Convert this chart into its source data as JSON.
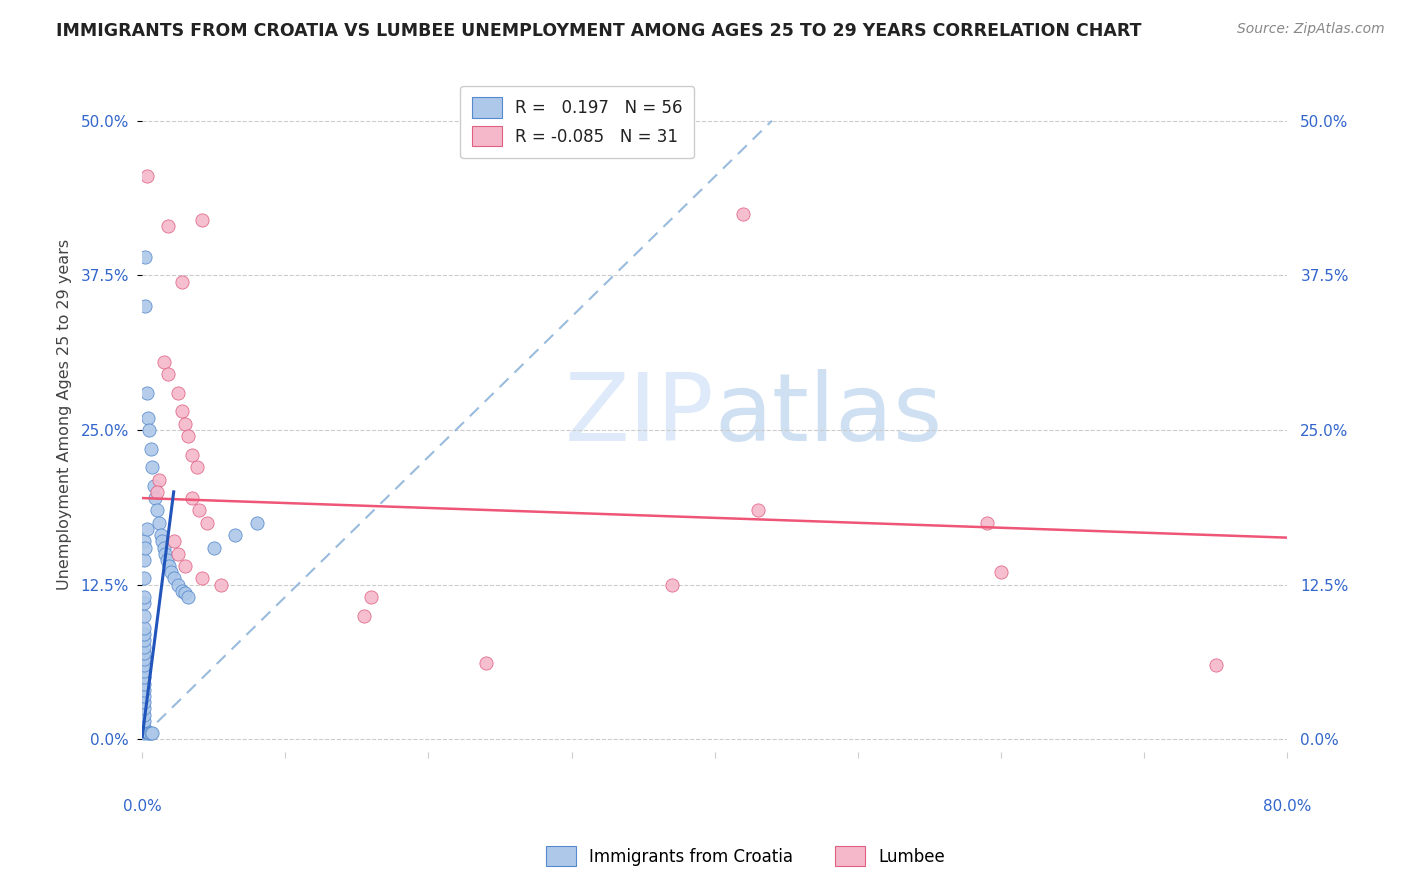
{
  "title": "IMMIGRANTS FROM CROATIA VS LUMBEE UNEMPLOYMENT AMONG AGES 25 TO 29 YEARS CORRELATION CHART",
  "source": "Source: ZipAtlas.com",
  "ylabel": "Unemployment Among Ages 25 to 29 years",
  "ytick_labels": [
    "0.0%",
    "12.5%",
    "25.0%",
    "37.5%",
    "50.0%"
  ],
  "ytick_values": [
    0.0,
    0.125,
    0.25,
    0.375,
    0.5
  ],
  "xlim": [
    0.0,
    0.8
  ],
  "ylim": [
    -0.01,
    0.535
  ],
  "legend_series1": "Immigrants from Croatia",
  "legend_series2": "Lumbee",
  "color_blue": "#adc8e8",
  "color_blue_edge": "#5588cc",
  "color_pink": "#f5b8cb",
  "color_pink_edge": "#e06080",
  "trendline_blue": "#2255bb",
  "trendline_pink": "#ee5577",
  "trendline_dashed": "#99bbdd",
  "watermark_color": "#ddeeff",
  "blue_scatter": [
    [
      0.001,
      0.005
    ],
    [
      0.001,
      0.01
    ],
    [
      0.001,
      0.015
    ],
    [
      0.001,
      0.02
    ],
    [
      0.001,
      0.025
    ],
    [
      0.001,
      0.03
    ],
    [
      0.001,
      0.035
    ],
    [
      0.001,
      0.04
    ],
    [
      0.001,
      0.045
    ],
    [
      0.001,
      0.05
    ],
    [
      0.001,
      0.055
    ],
    [
      0.001,
      0.06
    ],
    [
      0.001,
      0.065
    ],
    [
      0.001,
      0.07
    ],
    [
      0.001,
      0.075
    ],
    [
      0.001,
      0.08
    ],
    [
      0.001,
      0.085
    ],
    [
      0.001,
      0.09
    ],
    [
      0.001,
      0.1
    ],
    [
      0.001,
      0.11
    ],
    [
      0.001,
      0.115
    ],
    [
      0.001,
      0.13
    ],
    [
      0.001,
      0.145
    ],
    [
      0.001,
      0.16
    ],
    [
      0.002,
      0.155
    ],
    [
      0.003,
      0.17
    ],
    [
      0.004,
      0.005
    ],
    [
      0.005,
      0.005
    ],
    [
      0.006,
      0.005
    ],
    [
      0.007,
      0.005
    ],
    [
      0.002,
      0.39
    ],
    [
      0.002,
      0.35
    ],
    [
      0.003,
      0.28
    ],
    [
      0.004,
      0.26
    ],
    [
      0.005,
      0.25
    ],
    [
      0.006,
      0.235
    ],
    [
      0.007,
      0.22
    ],
    [
      0.008,
      0.205
    ],
    [
      0.009,
      0.195
    ],
    [
      0.01,
      0.185
    ],
    [
      0.012,
      0.175
    ],
    [
      0.013,
      0.165
    ],
    [
      0.014,
      0.16
    ],
    [
      0.015,
      0.155
    ],
    [
      0.016,
      0.15
    ],
    [
      0.017,
      0.145
    ],
    [
      0.019,
      0.14
    ],
    [
      0.02,
      0.135
    ],
    [
      0.022,
      0.13
    ],
    [
      0.025,
      0.125
    ],
    [
      0.028,
      0.12
    ],
    [
      0.03,
      0.118
    ],
    [
      0.032,
      0.115
    ],
    [
      0.05,
      0.155
    ],
    [
      0.065,
      0.165
    ],
    [
      0.08,
      0.175
    ]
  ],
  "pink_scatter": [
    [
      0.003,
      0.455
    ],
    [
      0.018,
      0.415
    ],
    [
      0.042,
      0.42
    ],
    [
      0.028,
      0.37
    ],
    [
      0.015,
      0.305
    ],
    [
      0.018,
      0.295
    ],
    [
      0.025,
      0.28
    ],
    [
      0.028,
      0.265
    ],
    [
      0.03,
      0.255
    ],
    [
      0.032,
      0.245
    ],
    [
      0.035,
      0.23
    ],
    [
      0.038,
      0.22
    ],
    [
      0.012,
      0.21
    ],
    [
      0.01,
      0.2
    ],
    [
      0.035,
      0.195
    ],
    [
      0.04,
      0.185
    ],
    [
      0.045,
      0.175
    ],
    [
      0.022,
      0.16
    ],
    [
      0.025,
      0.15
    ],
    [
      0.03,
      0.14
    ],
    [
      0.042,
      0.13
    ],
    [
      0.055,
      0.125
    ],
    [
      0.42,
      0.425
    ],
    [
      0.43,
      0.185
    ],
    [
      0.59,
      0.175
    ],
    [
      0.6,
      0.135
    ],
    [
      0.37,
      0.125
    ],
    [
      0.75,
      0.06
    ],
    [
      0.24,
      0.062
    ],
    [
      0.155,
      0.1
    ],
    [
      0.16,
      0.115
    ]
  ],
  "blue_trendline_solid": [
    [
      0.0,
      0.002
    ],
    [
      0.022,
      0.2
    ]
  ],
  "blue_trendline_dashed": [
    [
      0.0,
      0.002
    ],
    [
      0.44,
      0.5
    ]
  ],
  "pink_trendline": [
    [
      0.0,
      0.195
    ],
    [
      0.8,
      0.163
    ]
  ]
}
